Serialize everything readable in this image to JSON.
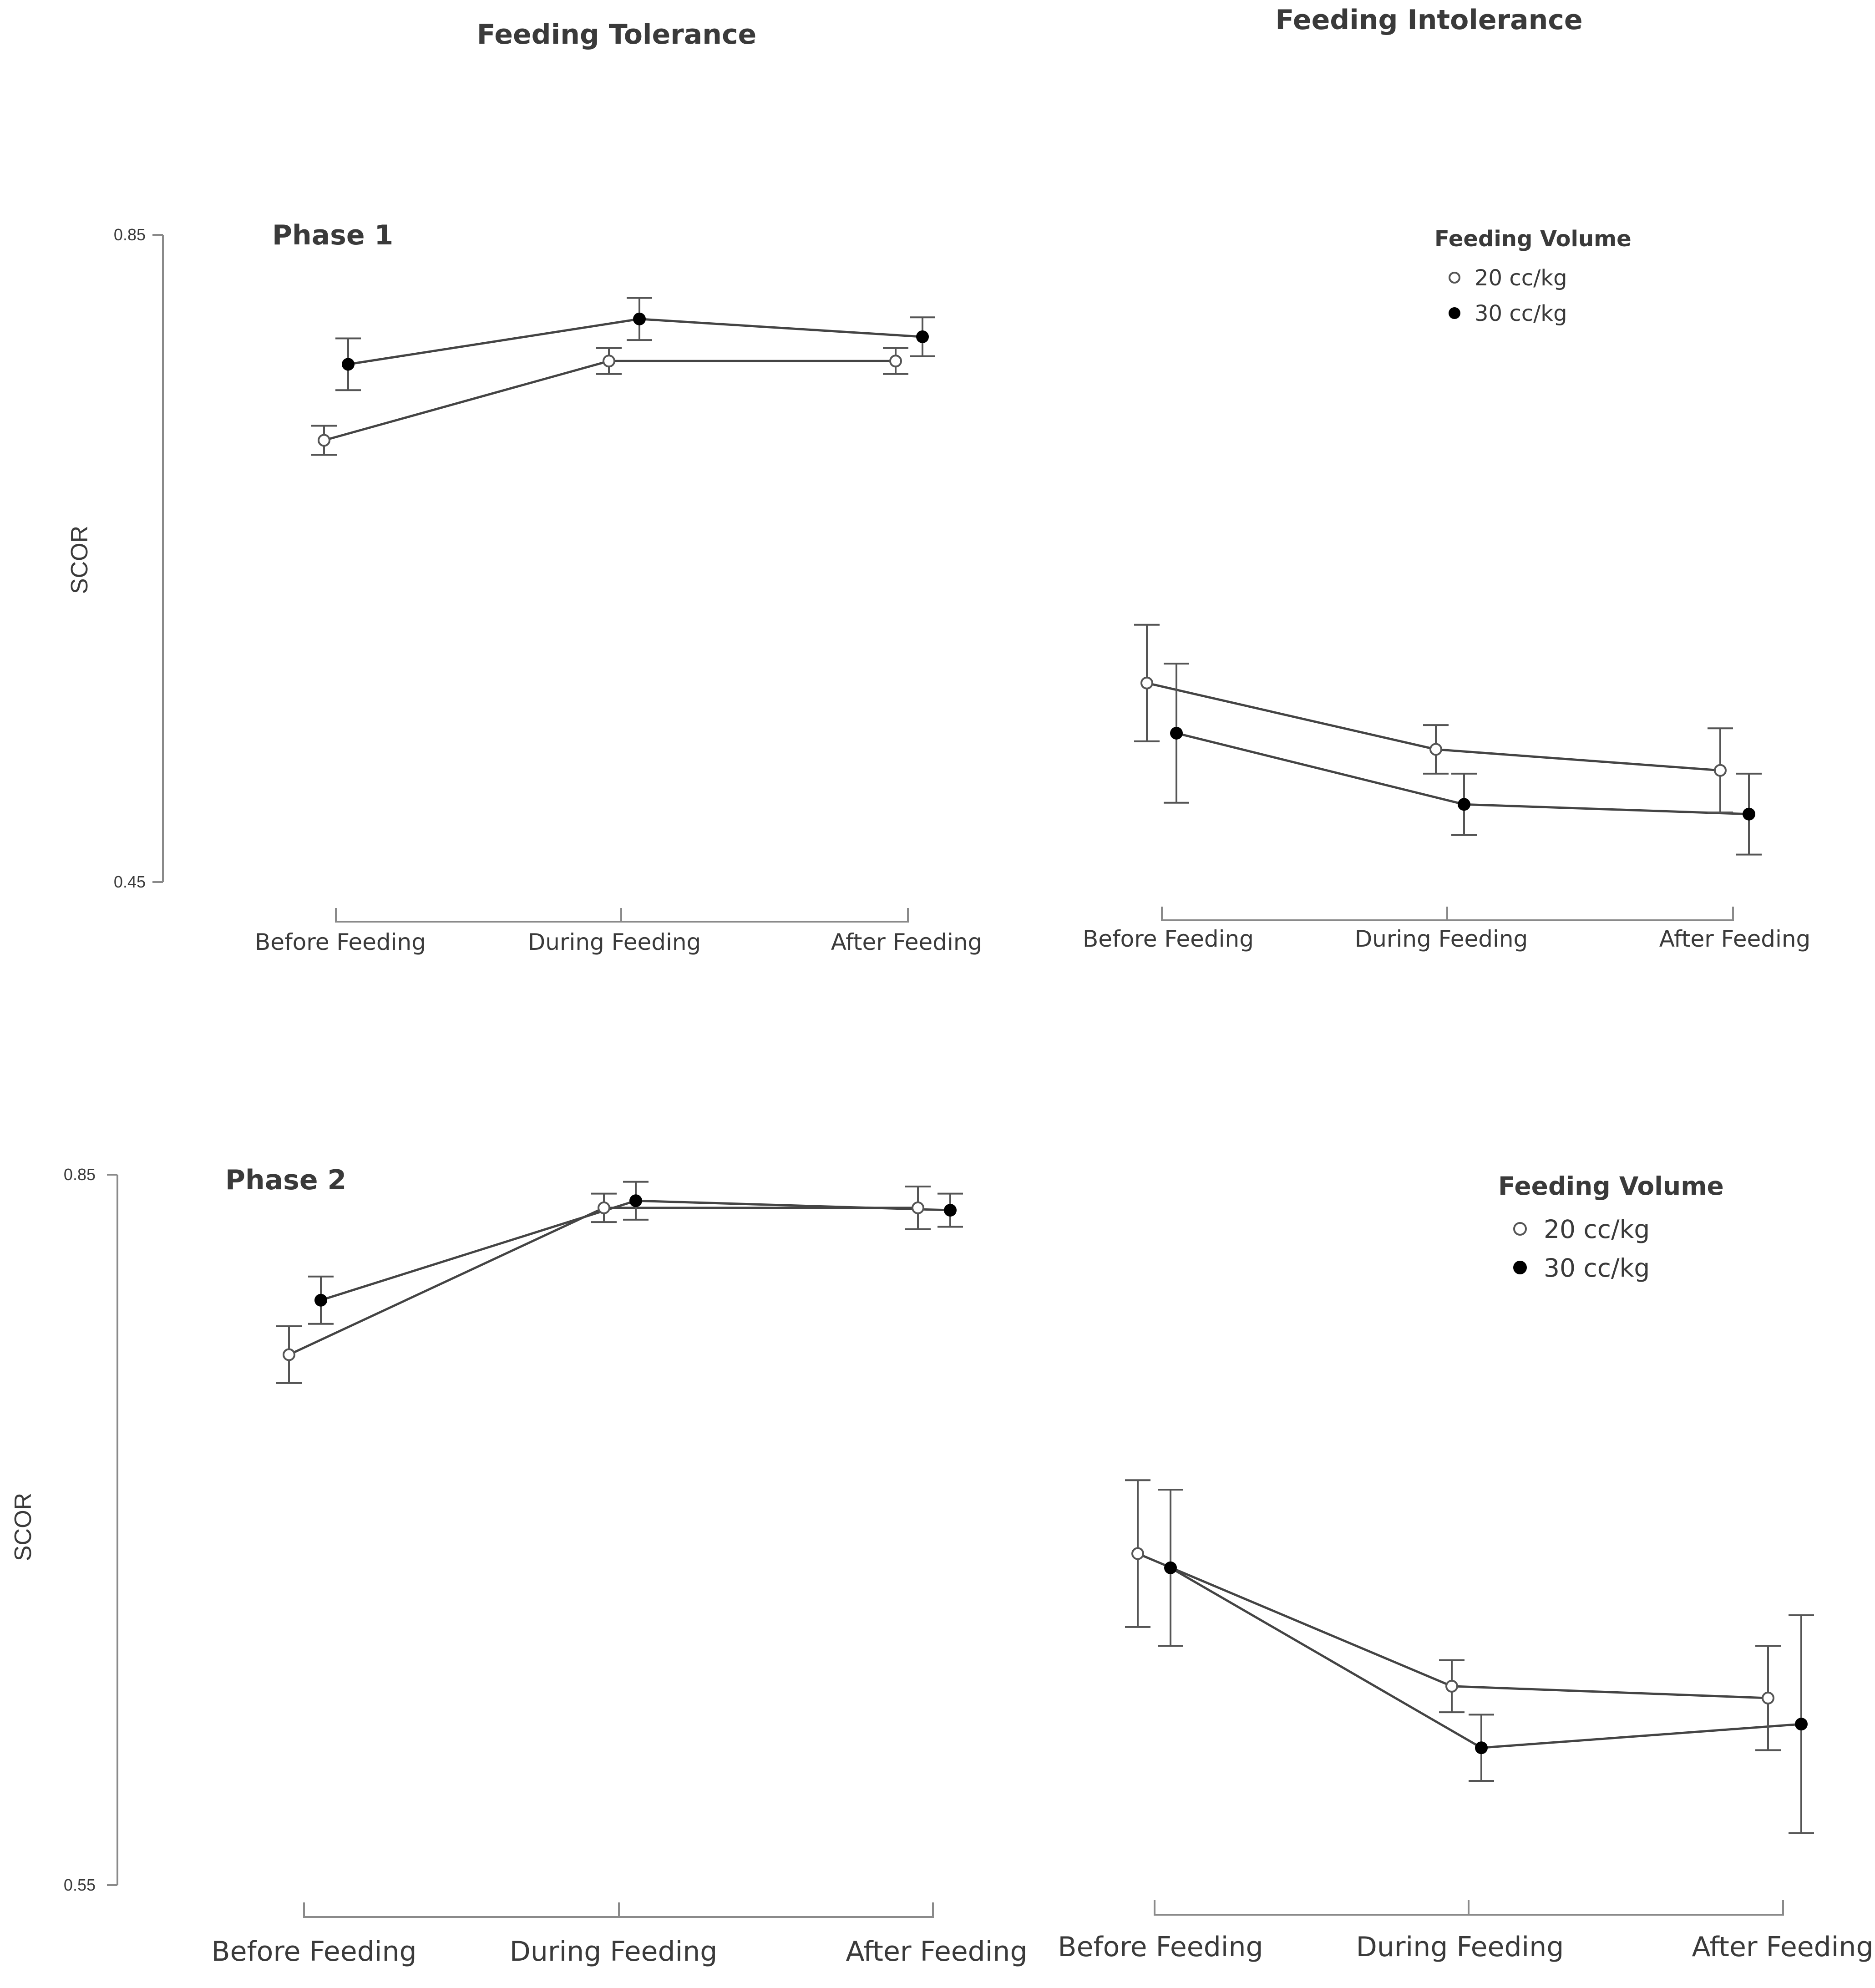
{
  "chart_data": [
    {
      "type": "line",
      "panel": "Phase 1 - Feeding Tolerance",
      "title": "Feeding Tolerance",
      "phase_label": "Phase 1",
      "ylabel": "SCOR",
      "ylim": [
        0.45,
        0.85
      ],
      "yticks": [
        "0.85",
        "0.45"
      ],
      "categories": [
        "Before Feeding",
        "During Feeding",
        "After Feeding"
      ],
      "series": [
        {
          "name": "20 cc/kg",
          "marker": "open",
          "values": [
            0.723,
            0.772,
            0.772
          ],
          "err": [
            0.009,
            0.008,
            0.008
          ]
        },
        {
          "name": "30 cc/kg",
          "marker": "filled",
          "values": [
            0.77,
            0.798,
            0.787
          ],
          "err": [
            0.016,
            0.013,
            0.012
          ]
        }
      ]
    },
    {
      "type": "line",
      "panel": "Phase 1 - Feeding Intolerance",
      "title": "Feeding Intolerance",
      "ylim": [
        0.45,
        0.85
      ],
      "categories": [
        "Before Feeding",
        "During Feeding",
        "After Feeding"
      ],
      "legend": {
        "title": "Feeding Volume",
        "entries": [
          "20 cc/kg",
          "30 cc/kg"
        ],
        "position": "top-right"
      },
      "series": [
        {
          "name": "20 cc/kg",
          "marker": "open",
          "values": [
            0.573,
            0.532,
            0.519
          ],
          "err": [
            0.036,
            0.015,
            0.026
          ]
        },
        {
          "name": "30 cc/kg",
          "marker": "filled",
          "values": [
            0.542,
            0.498,
            0.492
          ],
          "err": [
            0.043,
            0.019,
            0.025
          ]
        }
      ]
    },
    {
      "type": "line",
      "panel": "Phase 2 - Feeding Tolerance",
      "phase_label": "Phase 2",
      "ylabel": "SCOR",
      "ylim": [
        0.55,
        0.85
      ],
      "yticks": [
        "0.85",
        "0.55"
      ],
      "categories": [
        "Before Feeding",
        "During Feeding",
        "After Feeding"
      ],
      "series": [
        {
          "name": "20 cc/kg",
          "marker": "open",
          "values": [
            0.774,
            0.836,
            0.836
          ],
          "err": [
            0.012,
            0.006,
            0.009
          ]
        },
        {
          "name": "30 cc/kg",
          "marker": "filled",
          "values": [
            0.797,
            0.839,
            0.835
          ],
          "err": [
            0.01,
            0.008,
            0.007
          ]
        }
      ]
    },
    {
      "type": "line",
      "panel": "Phase 2 - Feeding Intolerance",
      "ylim": [
        0.55,
        0.85
      ],
      "categories": [
        "Before Feeding",
        "During Feeding",
        "After Feeding"
      ],
      "legend": {
        "title": "Feeding Volume",
        "entries": [
          "20 cc/kg",
          "30 cc/kg"
        ],
        "position": "top-right"
      },
      "series": [
        {
          "name": "20 cc/kg",
          "marker": "open",
          "values": [
            0.69,
            0.634,
            0.629
          ],
          "err": [
            0.031,
            0.011,
            0.022
          ]
        },
        {
          "name": "30 cc/kg",
          "marker": "filled",
          "values": [
            0.684,
            0.608,
            0.618
          ],
          "err": [
            0.033,
            0.014,
            0.046
          ]
        }
      ]
    }
  ]
}
